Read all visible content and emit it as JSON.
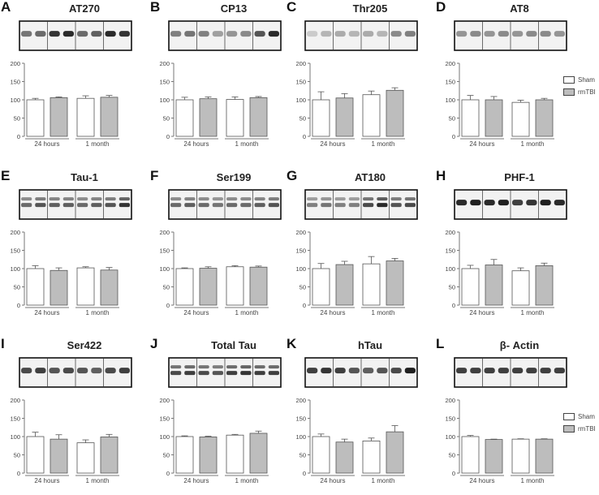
{
  "colors": {
    "sham": "#ffffff",
    "rmtbi": "#bdbdbd",
    "axis": "#777777",
    "text": "#444444"
  },
  "legend": {
    "sham_label": "Sham",
    "rmtbi_label": "rmTBI"
  },
  "chart_data": [
    {
      "type": "bar",
      "panel": "A",
      "title": "AT270",
      "groups": [
        "24 hours",
        "1 month"
      ],
      "series": [
        {
          "name": "Sham",
          "values": [
            100,
            104
          ],
          "errors": [
            4,
            7
          ]
        },
        {
          "name": "rmTBI",
          "values": [
            106,
            107
          ],
          "errors": [
            2,
            5
          ]
        }
      ],
      "yticks": [
        0,
        50,
        100,
        150,
        200
      ],
      "ylim": [
        0,
        200
      ],
      "blot_bands": [
        0.55,
        0.6,
        0.85,
        0.9,
        0.6,
        0.65,
        0.9,
        0.85
      ],
      "blot_doublet": false
    },
    {
      "type": "bar",
      "panel": "B",
      "title": "CP13",
      "groups": [
        "24 hours",
        "1 month"
      ],
      "series": [
        {
          "name": "Sham",
          "values": [
            100,
            101
          ],
          "errors": [
            7,
            7
          ]
        },
        {
          "name": "rmTBI",
          "values": [
            103,
            106
          ],
          "errors": [
            5,
            3
          ]
        }
      ],
      "yticks": [
        0,
        50,
        100,
        150,
        200
      ],
      "ylim": [
        0,
        200
      ],
      "blot_bands": [
        0.5,
        0.55,
        0.5,
        0.35,
        0.4,
        0.45,
        0.7,
        0.9
      ],
      "blot_doublet": false
    },
    {
      "type": "bar",
      "panel": "C",
      "title": "Thr205",
      "groups": [
        "24 hours",
        "1 month"
      ],
      "series": [
        {
          "name": "Sham",
          "values": [
            100,
            114
          ],
          "errors": [
            22,
            10
          ]
        },
        {
          "name": "rmTBI",
          "values": [
            105,
            126
          ],
          "errors": [
            12,
            7
          ]
        }
      ],
      "yticks": [
        0,
        50,
        100,
        150,
        200
      ],
      "ylim": [
        0,
        200
      ],
      "blot_bands": [
        0.15,
        0.25,
        0.3,
        0.25,
        0.3,
        0.25,
        0.45,
        0.5
      ],
      "blot_doublet": false
    },
    {
      "type": "bar",
      "panel": "D",
      "title": "AT8",
      "groups": [
        "24 hours",
        "1 month"
      ],
      "series": [
        {
          "name": "Sham",
          "values": [
            100,
            93
          ],
          "errors": [
            12,
            6
          ]
        },
        {
          "name": "rmTBI",
          "values": [
            100,
            100
          ],
          "errors": [
            9,
            4
          ]
        }
      ],
      "yticks": [
        0,
        50,
        100,
        150,
        200
      ],
      "ylim": [
        0,
        200
      ],
      "blot_bands": [
        0.4,
        0.45,
        0.4,
        0.45,
        0.4,
        0.45,
        0.45,
        0.4
      ],
      "blot_doublet": false
    },
    {
      "type": "bar",
      "panel": "E",
      "title": "Tau-1",
      "groups": [
        "24 hours",
        "1 month"
      ],
      "series": [
        {
          "name": "Sham",
          "values": [
            100,
            102
          ],
          "errors": [
            8,
            3
          ]
        },
        {
          "name": "rmTBI",
          "values": [
            95,
            96
          ],
          "errors": [
            7,
            7
          ]
        }
      ],
      "yticks": [
        0,
        50,
        100,
        150,
        200
      ],
      "ylim": [
        0,
        200
      ],
      "blot_bands": [
        0.6,
        0.7,
        0.65,
        0.65,
        0.6,
        0.65,
        0.7,
        0.85
      ],
      "blot_doublet": true
    },
    {
      "type": "bar",
      "panel": "F",
      "title": "Ser199",
      "groups": [
        "24 hours",
        "1 month"
      ],
      "series": [
        {
          "name": "Sham",
          "values": [
            100,
            105
          ],
          "errors": [
            2,
            3
          ]
        },
        {
          "name": "rmTBI",
          "values": [
            101,
            104
          ],
          "errors": [
            4,
            3
          ]
        }
      ],
      "yticks": [
        0,
        50,
        100,
        150,
        200
      ],
      "ylim": [
        0,
        200
      ],
      "blot_bands": [
        0.6,
        0.65,
        0.6,
        0.55,
        0.6,
        0.6,
        0.65,
        0.7
      ],
      "blot_doublet": true
    },
    {
      "type": "bar",
      "panel": "G",
      "title": "AT180",
      "groups": [
        "24 hours",
        "1 month"
      ],
      "series": [
        {
          "name": "Sham",
          "values": [
            100,
            113
          ],
          "errors": [
            14,
            20
          ]
        },
        {
          "name": "rmTBI",
          "values": [
            111,
            121
          ],
          "errors": [
            9,
            7
          ]
        }
      ],
      "yticks": [
        0,
        50,
        100,
        150,
        200
      ],
      "ylim": [
        0,
        200
      ],
      "blot_bands": [
        0.5,
        0.55,
        0.5,
        0.5,
        0.75,
        0.9,
        0.7,
        0.75
      ],
      "blot_doublet": true
    },
    {
      "type": "bar",
      "panel": "H",
      "title": "PHF-1",
      "groups": [
        "24 hours",
        "1 month"
      ],
      "series": [
        {
          "name": "Sham",
          "values": [
            100,
            94
          ],
          "errors": [
            9,
            8
          ]
        },
        {
          "name": "rmTBI",
          "values": [
            110,
            108
          ],
          "errors": [
            15,
            7
          ]
        }
      ],
      "yticks": [
        0,
        50,
        100,
        150,
        200
      ],
      "ylim": [
        0,
        200
      ],
      "blot_bands": [
        0.9,
        0.95,
        0.9,
        0.95,
        0.8,
        0.85,
        0.95,
        0.9
      ],
      "blot_doublet": false
    },
    {
      "type": "bar",
      "panel": "I",
      "title": "Ser422",
      "groups": [
        "24 hours",
        "1 month"
      ],
      "series": [
        {
          "name": "Sham",
          "values": [
            100,
            83
          ],
          "errors": [
            12,
            8
          ]
        },
        {
          "name": "rmTBI",
          "values": [
            93,
            99
          ],
          "errors": [
            12,
            7
          ]
        }
      ],
      "yticks": [
        0,
        50,
        100,
        150,
        200
      ],
      "ylim": [
        0,
        200
      ],
      "blot_bands": [
        0.75,
        0.8,
        0.7,
        0.75,
        0.7,
        0.65,
        0.75,
        0.8
      ],
      "blot_doublet": false
    },
    {
      "type": "bar",
      "panel": "J",
      "title": "Total Tau",
      "groups": [
        "24 hours",
        "1 month"
      ],
      "series": [
        {
          "name": "Sham",
          "values": [
            100,
            104
          ],
          "errors": [
            2,
            2
          ]
        },
        {
          "name": "rmTBI",
          "values": [
            99,
            109
          ],
          "errors": [
            2,
            6
          ]
        }
      ],
      "yticks": [
        0,
        50,
        100,
        150,
        200
      ],
      "ylim": [
        0,
        200
      ],
      "blot_bands": [
        0.75,
        0.8,
        0.75,
        0.7,
        0.8,
        0.85,
        0.8,
        0.8
      ],
      "blot_doublet": true
    },
    {
      "type": "bar",
      "panel": "K",
      "title": "hTau",
      "groups": [
        "24 hours",
        "1 month"
      ],
      "series": [
        {
          "name": "Sham",
          "values": [
            100,
            88
          ],
          "errors": [
            7,
            8
          ]
        },
        {
          "name": "rmTBI",
          "values": [
            85,
            113
          ],
          "errors": [
            8,
            17
          ]
        }
      ],
      "yticks": [
        0,
        50,
        100,
        150,
        200
      ],
      "ylim": [
        0,
        200
      ],
      "blot_bands": [
        0.8,
        0.85,
        0.8,
        0.7,
        0.65,
        0.7,
        0.75,
        0.95
      ],
      "blot_doublet": false
    },
    {
      "type": "bar",
      "panel": "L",
      "title": "β- Actin",
      "groups": [
        "24 hours",
        "1 month"
      ],
      "series": [
        {
          "name": "Sham",
          "values": [
            100,
            93
          ],
          "errors": [
            3,
            1
          ]
        },
        {
          "name": "rmTBI",
          "values": [
            92,
            93
          ],
          "errors": [
            1,
            1
          ]
        }
      ],
      "yticks": [
        0,
        50,
        100,
        150,
        200
      ],
      "ylim": [
        0,
        200
      ],
      "blot_bands": [
        0.8,
        0.8,
        0.8,
        0.8,
        0.8,
        0.8,
        0.8,
        0.8
      ],
      "blot_doublet": false
    }
  ]
}
